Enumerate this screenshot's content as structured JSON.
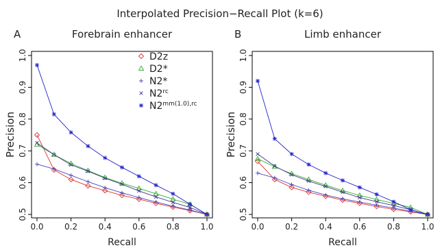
{
  "figure": {
    "title": "Interpolated Precision−Recall Plot (k=6)"
  },
  "chart_data": [
    {
      "type": "line",
      "letter": "A",
      "title": "Forebrain enhancer",
      "xlabel": "Recall",
      "ylabel": "Precision",
      "xlim": [
        0,
        1
      ],
      "ylim": [
        0.5,
        1.0
      ],
      "x_ticks": [
        "0.0",
        "0.2",
        "0.4",
        "0.6",
        "0.8",
        "1.0"
      ],
      "y_ticks": [
        "0.5",
        "0.6",
        "0.7",
        "0.8",
        "0.9",
        "1.0"
      ],
      "legend_position": "top-center",
      "x": [
        0,
        0.1,
        0.2,
        0.3,
        0.4,
        0.5,
        0.6,
        0.7,
        0.8,
        0.9,
        1.0
      ],
      "series": [
        {
          "name": "D2z",
          "sup": "",
          "marker": "diamond",
          "color": "#dd3333",
          "values": [
            0.75,
            0.64,
            0.61,
            0.59,
            0.575,
            0.56,
            0.548,
            0.535,
            0.523,
            0.512,
            0.5
          ]
        },
        {
          "name": "D2*",
          "sup": "",
          "marker": "triangle",
          "color": "#33aa33",
          "values": [
            0.72,
            0.688,
            0.66,
            0.638,
            0.616,
            0.598,
            0.582,
            0.565,
            0.548,
            0.532,
            0.5
          ]
        },
        {
          "name": "N2*",
          "sup": "",
          "marker": "plus",
          "color": "#4444bb",
          "values": [
            0.658,
            0.643,
            0.623,
            0.603,
            0.584,
            0.568,
            0.553,
            0.539,
            0.526,
            0.514,
            0.5
          ]
        },
        {
          "name": "N2",
          "sup": "rc",
          "marker": "cross",
          "color": "#443388",
          "values": [
            0.725,
            0.688,
            0.656,
            0.636,
            0.614,
            0.595,
            0.574,
            0.555,
            0.538,
            0.522,
            0.5
          ]
        },
        {
          "name": "N2",
          "sup": "mm(1.0),rc",
          "marker": "asterisk",
          "color": "#2222cc",
          "values": [
            0.97,
            0.815,
            0.758,
            0.715,
            0.678,
            0.648,
            0.62,
            0.592,
            0.565,
            0.532,
            0.5
          ]
        }
      ]
    },
    {
      "type": "line",
      "letter": "B",
      "title": "Limb enhancer",
      "xlabel": "Recall",
      "ylabel": "Precision",
      "xlim": [
        0,
        1
      ],
      "ylim": [
        0.5,
        1.0
      ],
      "x_ticks": [
        "0.0",
        "0.2",
        "0.4",
        "0.6",
        "0.8",
        "1.0"
      ],
      "y_ticks": [
        "0.5",
        "0.6",
        "0.7",
        "0.8",
        "0.9",
        "1.0"
      ],
      "legend_position": "none",
      "x": [
        0,
        0.1,
        0.2,
        0.3,
        0.4,
        0.5,
        0.6,
        0.7,
        0.8,
        0.9,
        1.0
      ],
      "series": [
        {
          "name": "D2z",
          "sup": "",
          "marker": "diamond",
          "color": "#dd3333",
          "values": [
            0.667,
            0.61,
            0.585,
            0.57,
            0.557,
            0.545,
            0.535,
            0.525,
            0.516,
            0.508,
            0.5
          ]
        },
        {
          "name": "D2*",
          "sup": "",
          "marker": "triangle",
          "color": "#33aa33",
          "values": [
            0.675,
            0.65,
            0.628,
            0.61,
            0.592,
            0.575,
            0.56,
            0.547,
            0.535,
            0.522,
            0.5
          ]
        },
        {
          "name": "N2*",
          "sup": "",
          "marker": "plus",
          "color": "#4444bb",
          "values": [
            0.63,
            0.615,
            0.594,
            0.576,
            0.561,
            0.549,
            0.539,
            0.529,
            0.52,
            0.51,
            0.5
          ]
        },
        {
          "name": "N2",
          "sup": "rc",
          "marker": "cross",
          "color": "#443388",
          "values": [
            0.69,
            0.652,
            0.625,
            0.605,
            0.588,
            0.57,
            0.553,
            0.54,
            0.528,
            0.515,
            0.5
          ]
        },
        {
          "name": "N2",
          "sup": "mm(1.0),rc",
          "marker": "asterisk",
          "color": "#2222cc",
          "values": [
            0.92,
            0.738,
            0.69,
            0.657,
            0.63,
            0.607,
            0.585,
            0.563,
            0.54,
            0.515,
            0.5
          ]
        }
      ]
    }
  ]
}
